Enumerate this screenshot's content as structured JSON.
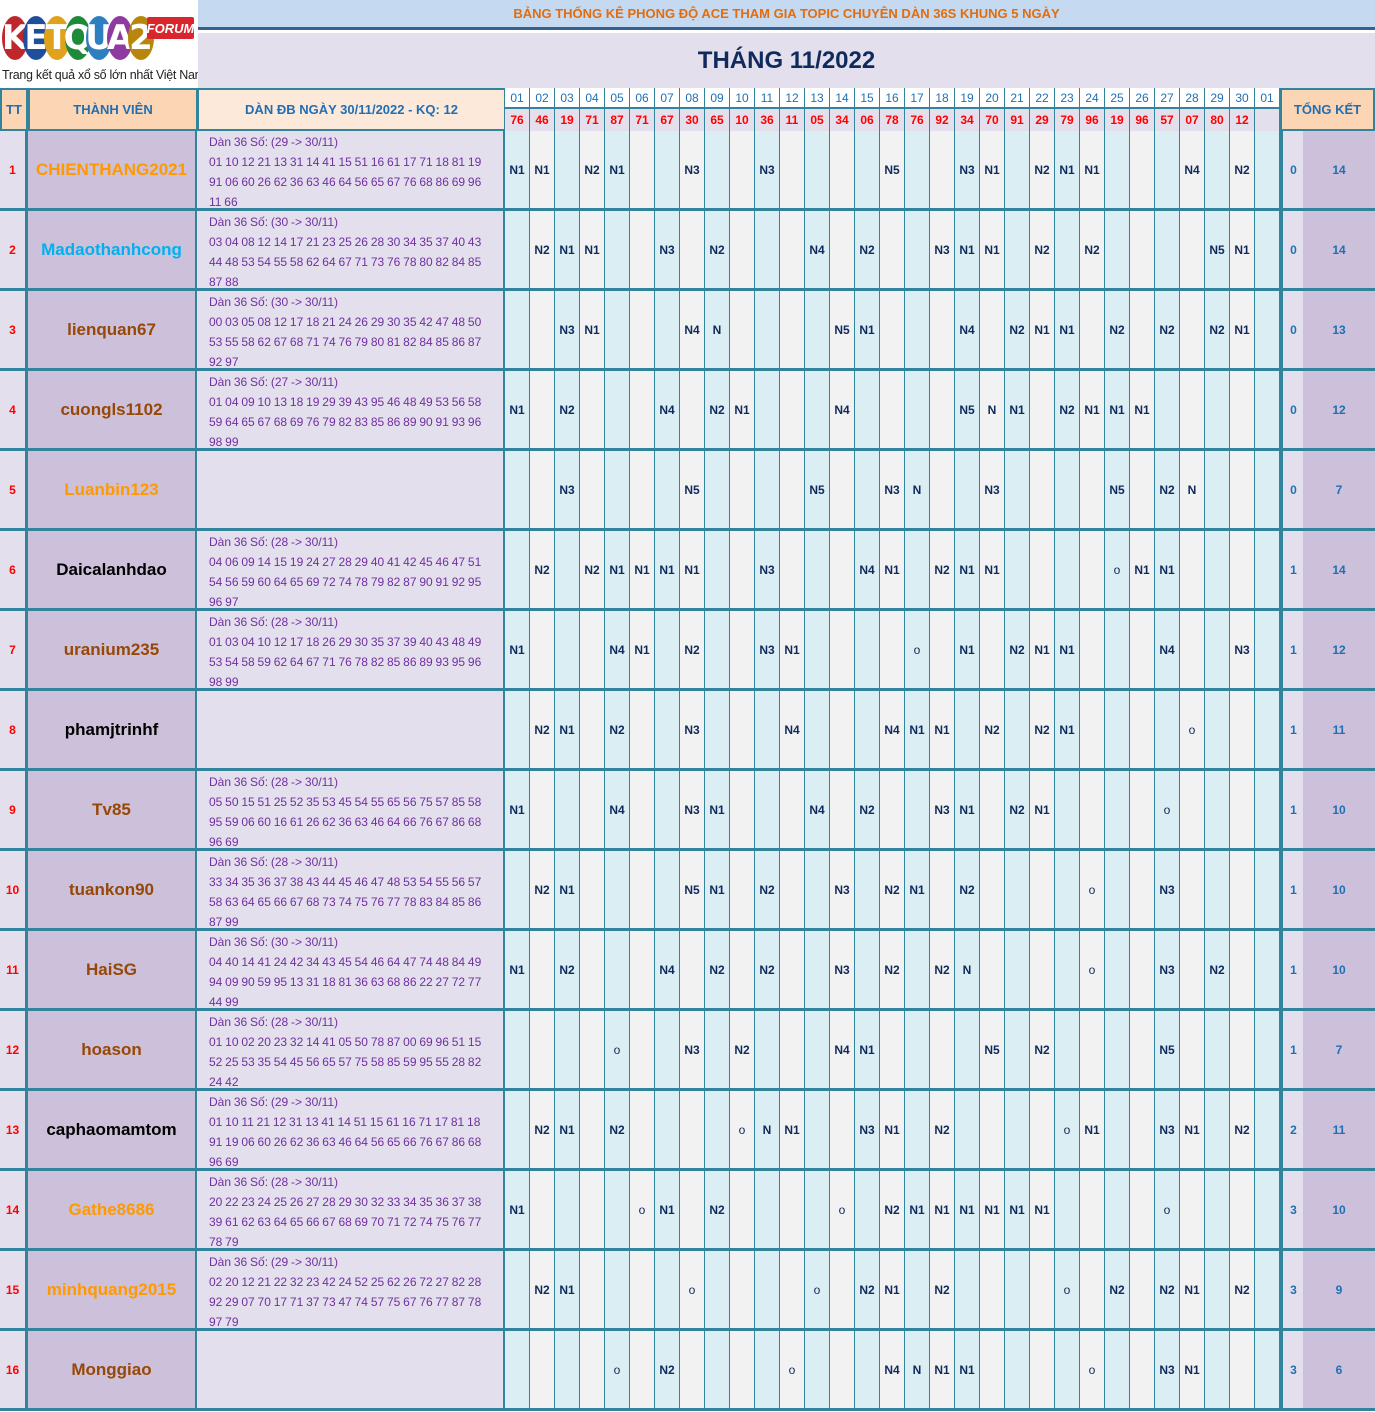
{
  "logo": {
    "brand": "KETQUA2",
    "badge": "FORUM",
    "tagline": "Trang kết quả xổ số lớn nhất Việt Nam"
  },
  "header": {
    "title": "BẢNG THỐNG KÊ PHONG ĐỘ ACE THAM GIA TOPIC CHUYÊN DÀN 36S KHUNG 5 NGÀY",
    "month": "THÁNG 11/2022",
    "col_tt": "TT",
    "col_member": "THÀNH VIÊN",
    "col_dan": "DÀN ĐB NGÀY 30/11/2022 - KQ: 12",
    "col_total": "TỔNG KẾT"
  },
  "colors": {
    "border": "#31849b",
    "result_red": "#ff0000",
    "orange": "#ff9900",
    "cyan": "#00b0f0",
    "brown": "#974706",
    "black": "#000000"
  },
  "days": [
    "01",
    "02",
    "03",
    "04",
    "05",
    "06",
    "07",
    "08",
    "09",
    "10",
    "11",
    "12",
    "13",
    "14",
    "15",
    "16",
    "17",
    "18",
    "19",
    "20",
    "21",
    "22",
    "23",
    "24",
    "25",
    "26",
    "27",
    "28",
    "29",
    "30",
    "01"
  ],
  "results": [
    "76",
    "46",
    "19",
    "71",
    "87",
    "71",
    "67",
    "30",
    "65",
    "10",
    "36",
    "11",
    "05",
    "34",
    "06",
    "78",
    "76",
    "92",
    "34",
    "70",
    "91",
    "29",
    "79",
    "96",
    "19",
    "96",
    "57",
    "07",
    "80",
    "12",
    ""
  ],
  "rows": [
    {
      "tt": "1",
      "name": "CHIENTHANG2021",
      "color": "#ff9900",
      "dan_title": "Dàn 36 Số: (29 -> 30/11)",
      "dan": "01 10 12 21 13 31 14 41 15 51 16 61 17 71 18 81 19 91 06 60 26 62 36 63 46 64 56 65 67 76 68 86 69 96 11 66",
      "cells": [
        "N1",
        "N1",
        "",
        "N2",
        "N1",
        "",
        "",
        "N3",
        "",
        "",
        "N3",
        "",
        "",
        "",
        "",
        "N5",
        "",
        "",
        "N3",
        "N1",
        "",
        "N2",
        "N1",
        "N1",
        "",
        "",
        "",
        "N4",
        "",
        "N2",
        ""
      ],
      "t1": "0",
      "t2": "14"
    },
    {
      "tt": "2",
      "name": "Madaothanhcong",
      "color": "#00b0f0",
      "dan_title": "Dàn 36 Số: (30 -> 30/11)",
      "dan": "03 04 08 12 14 17 21 23 25 26 28 30 34 35 37 40 43 44 48 53 54 55 58 62 64 67 71 73 76 78 80 82 84 85 87 88",
      "cells": [
        "",
        "N2",
        "N1",
        "N1",
        "",
        "",
        "N3",
        "",
        "N2",
        "",
        "",
        "",
        "N4",
        "",
        "N2",
        "",
        "",
        "N3",
        "N1",
        "N1",
        "",
        "N2",
        "",
        "N2",
        "",
        "",
        "",
        "",
        "N5",
        "N1",
        ""
      ],
      "t1": "0",
      "t2": "14"
    },
    {
      "tt": "3",
      "name": "lienquan67",
      "color": "#974706",
      "dan_title": "Dàn 36 Số: (30 -> 30/11)",
      "dan": "00 03 05 08 12 17 18 21 24 26 29 30 35 42 47 48 50 53 55 58 62 67 68 71 74 76 79 80 81 82 84 85 86 87 92 97",
      "cells": [
        "",
        "",
        "N3",
        "N1",
        "",
        "",
        "",
        "N4",
        "N",
        "",
        "",
        "",
        "",
        "N5",
        "N1",
        "",
        "",
        "",
        "N4",
        "",
        "N2",
        "N1",
        "N1",
        "",
        "N2",
        "",
        "N2",
        "",
        "N2",
        "N1",
        ""
      ],
      "t1": "0",
      "t2": "13"
    },
    {
      "tt": "4",
      "name": "cuongls1102",
      "color": "#974706",
      "dan_title": "Dàn 36 Số: (27 -> 30/11)",
      "dan": "01 04 09 10 13 18 19 29 39 43 95 46 48 49 53 56 58 59 64 65 67 68 69 76 79 82 83 85 86 89 90 91 93 96 98 99",
      "cells": [
        "N1",
        "",
        "N2",
        "",
        "",
        "",
        "N4",
        "",
        "N2",
        "N1",
        "",
        "",
        "",
        "N4",
        "",
        "",
        "",
        "",
        "N5",
        "N",
        "N1",
        "",
        "N2",
        "N1",
        "N1",
        "N1",
        "",
        "",
        "",
        "",
        ""
      ],
      "t1": "0",
      "t2": "12"
    },
    {
      "tt": "5",
      "name": "Luanbin123",
      "color": "#ff9900",
      "dan_title": "",
      "dan": "",
      "cells": [
        "",
        "",
        "N3",
        "",
        "",
        "",
        "",
        "N5",
        "",
        "",
        "",
        "",
        "N5",
        "",
        "",
        "N3",
        "N",
        "",
        "",
        "N3",
        "",
        "",
        "",
        "",
        "N5",
        "",
        "N2",
        "N",
        "",
        "",
        ""
      ],
      "t1": "0",
      "t2": "7"
    },
    {
      "tt": "6",
      "name": "Daicalanhdao",
      "color": "#000000",
      "dan_title": "Dàn 36 Số: (28 -> 30/11)",
      "dan": "04 06 09 14 15 19 24 27 28 29 40 41 42 45 46 47 51 54 56 59 60 64 65 69 72 74 78 79 82 87 90 91 92 95 96 97",
      "cells": [
        "",
        "N2",
        "",
        "N2",
        "N1",
        "N1",
        "N1",
        "N1",
        "",
        "",
        "N3",
        "",
        "",
        "",
        "N4",
        "N1",
        "",
        "N2",
        "N1",
        "N1",
        "",
        "",
        "",
        "",
        "o",
        "N1",
        "N1",
        "",
        "",
        "",
        ""
      ],
      "t1": "1",
      "t2": "14"
    },
    {
      "tt": "7",
      "name": "uranium235",
      "color": "#974706",
      "dan_title": "Dàn 36 Số: (28 -> 30/11)",
      "dan": "01 03 04 10 12 17 18 26 29 30 35 37 39 40 43 48 49 53 54 58 59 62 64 67 71 76 78 82 85 86 89 93 95 96 98 99",
      "cells": [
        "N1",
        "",
        "",
        "",
        "N4",
        "N1",
        "",
        "N2",
        "",
        "",
        "N3",
        "N1",
        "",
        "",
        "",
        "",
        "o",
        "",
        "N1",
        "",
        "N2",
        "N1",
        "N1",
        "",
        "",
        "",
        "N4",
        "",
        "",
        "N3",
        ""
      ],
      "t1": "1",
      "t2": "12"
    },
    {
      "tt": "8",
      "name": "phamjtrinhf",
      "color": "#000000",
      "dan_title": "",
      "dan": "",
      "cells": [
        "",
        "N2",
        "N1",
        "",
        "N2",
        "",
        "",
        "N3",
        "",
        "",
        "",
        "N4",
        "",
        "",
        "",
        "N4",
        "N1",
        "N1",
        "",
        "N2",
        "",
        "N2",
        "N1",
        "",
        "",
        "",
        "",
        "o",
        "",
        "",
        ""
      ],
      "t1": "1",
      "t2": "11"
    },
    {
      "tt": "9",
      "name": "Tv85",
      "color": "#974706",
      "dan_title": "Dàn 36 Số: (28 -> 30/11)",
      "dan": "05 50 15 51 25 52 35 53 45 54 55 65 56 75 57 85 58 95 59 06 60 16 61 26 62 36 63 46 64 66 76 67 86 68 96 69",
      "cells": [
        "N1",
        "",
        "",
        "",
        "N4",
        "",
        "",
        "N3",
        "N1",
        "",
        "",
        "",
        "N4",
        "",
        "N2",
        "",
        "",
        "N3",
        "N1",
        "",
        "N2",
        "N1",
        "",
        "",
        "",
        "",
        "o",
        "",
        "",
        "",
        ""
      ],
      "t1": "1",
      "t2": "10"
    },
    {
      "tt": "10",
      "name": "tuankon90",
      "color": "#974706",
      "dan_title": "Dàn 36 Số: (28 -> 30/11)",
      "dan": "33 34 35 36 37 38 43 44 45 46 47 48 53 54 55 56 57 58 63 64 65 66 67 68 73 74 75 76 77 78 83 84 85 86 87 99",
      "cells": [
        "",
        "N2",
        "N1",
        "",
        "",
        "",
        "",
        "N5",
        "N1",
        "",
        "N2",
        "",
        "",
        "N3",
        "",
        "N2",
        "N1",
        "",
        "N2",
        "",
        "",
        "",
        "",
        "o",
        "",
        "",
        "N3",
        "",
        "",
        "",
        ""
      ],
      "t1": "1",
      "t2": "10"
    },
    {
      "tt": "11",
      "name": "HaiSG",
      "color": "#974706",
      "dan_title": "Dàn 36 Số: (30 -> 30/11)",
      "dan": "04 40 14 41 24 42 34 43 45 54 46 64 47 74 48 84 49 94 09 90 59 95 13 31 18 81 36 63 68 86 22 27 72 77 44 99",
      "cells": [
        "N1",
        "",
        "N2",
        "",
        "",
        "",
        "N4",
        "",
        "N2",
        "",
        "N2",
        "",
        "",
        "N3",
        "",
        "N2",
        "",
        "N2",
        "N",
        "",
        "",
        "",
        "",
        "o",
        "",
        "",
        "N3",
        "",
        "N2",
        "",
        ""
      ],
      "t1": "1",
      "t2": "10"
    },
    {
      "tt": "12",
      "name": "hoason",
      "color": "#974706",
      "dan_title": "Dàn 36 Số: (28 -> 30/11)",
      "dan": "01 10 02 20 23 32 14 41 05 50 78 87 00 69 96 51 15 52 25 53 35 54 45 56 65 57 75 58 85 59 95 55 28 82 24 42",
      "cells": [
        "",
        "",
        "",
        "",
        "o",
        "",
        "",
        "N3",
        "",
        "N2",
        "",
        "",
        "",
        "N4",
        "N1",
        "",
        "",
        "",
        "",
        "N5",
        "",
        "N2",
        "",
        "",
        "",
        "",
        "N5",
        "",
        "",
        "",
        ""
      ],
      "t1": "1",
      "t2": "7"
    },
    {
      "tt": "13",
      "name": "caphaomamtom",
      "color": "#000000",
      "dan_title": "Dàn 36 Số: (29 -> 30/11)",
      "dan": "01 10 11 21 12 31 13 41 14 51 15 61 16 71 17 81 18 91 19 06 60 26 62 36 63 46 64 56 65 66 76 67 86 68 96 69",
      "cells": [
        "",
        "N2",
        "N1",
        "",
        "N2",
        "",
        "",
        "",
        "",
        "o",
        "N",
        "N1",
        "",
        "",
        "N3",
        "N1",
        "",
        "N2",
        "",
        "",
        "",
        "",
        "o",
        "N1",
        "",
        "",
        "N3",
        "N1",
        "",
        "N2",
        ""
      ],
      "t1": "2",
      "t2": "11"
    },
    {
      "tt": "14",
      "name": "Gathe8686",
      "color": "#ff9900",
      "dan_title": "Dàn 36 Số: (28 -> 30/11)",
      "dan": "20 22 23 24 25 26 27 28 29 30 32 33 34 35 36 37 38 39 61 62 63 64 65 66 67 68 69 70 71 72 74 75 76 77 78 79",
      "cells": [
        "N1",
        "",
        "",
        "",
        "",
        "o",
        "N1",
        "",
        "N2",
        "",
        "",
        "",
        "",
        "o",
        "",
        "N2",
        "N1",
        "N1",
        "N1",
        "N1",
        "N1",
        "N1",
        "",
        "",
        "",
        "",
        "o",
        "",
        "",
        "",
        ""
      ],
      "t1": "3",
      "t2": "10"
    },
    {
      "tt": "15",
      "name": "minhquang2015",
      "color": "#ff9900",
      "dan_title": "Dàn 36 Số: (29 -> 30/11)",
      "dan": "02 20 12 21 22 32 23 42 24 52 25 62 26 72 27 82 28 92 29 07 70 17 71 37 73 47 74 57 75 67 76 77 87 78 97 79",
      "cells": [
        "",
        "N2",
        "N1",
        "",
        "",
        "",
        "",
        "o",
        "",
        "",
        "",
        "",
        "o",
        "",
        "N2",
        "N1",
        "",
        "N2",
        "",
        "",
        "",
        "",
        "o",
        "",
        "N2",
        "",
        "N2",
        "N1",
        "",
        "N2",
        ""
      ],
      "t1": "3",
      "t2": "9"
    },
    {
      "tt": "16",
      "name": "Monggiao",
      "color": "#974706",
      "dan_title": "",
      "dan": "",
      "cells": [
        "",
        "",
        "",
        "",
        "o",
        "",
        "N2",
        "",
        "",
        "",
        "",
        "o",
        "",
        "",
        "",
        "N4",
        "N",
        "N1",
        "N1",
        "",
        "",
        "",
        "",
        "o",
        "",
        "",
        "N3",
        "N1",
        "",
        "",
        ""
      ],
      "t1": "3",
      "t2": "6"
    }
  ]
}
